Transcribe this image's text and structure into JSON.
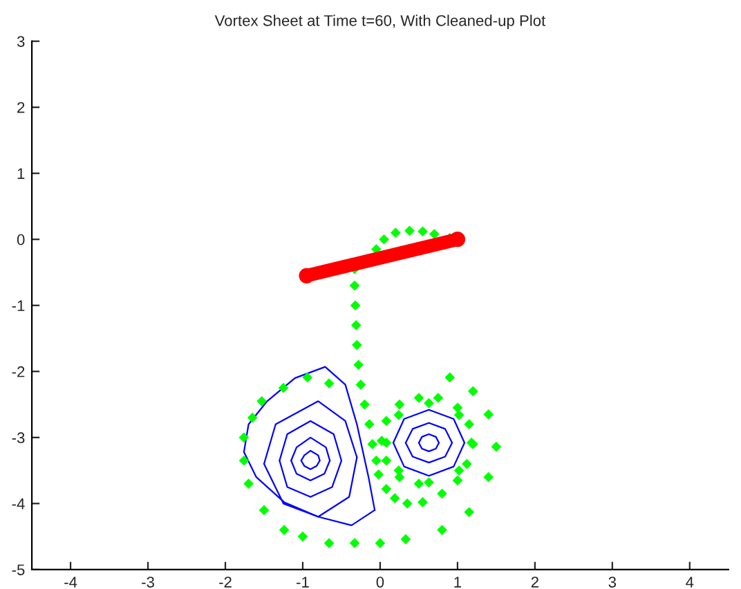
{
  "chart_data": {
    "type": "scatter",
    "title": "Vortex Sheet at Time t=60, With Cleaned-up Plot",
    "xlim": [
      -4.5,
      4.5
    ],
    "ylim": [
      -5,
      3
    ],
    "xticks": [
      -4,
      -3,
      -2,
      -1,
      0,
      1,
      2,
      3,
      4
    ],
    "yticks": [
      -5,
      -4,
      -3,
      -2,
      -1,
      0,
      1,
      2,
      3
    ],
    "grid": false,
    "series": [
      {
        "type": "line",
        "color": "#0000ff",
        "x": [
          -1.76,
          -1.7,
          -1.46,
          -1.1,
          -0.71,
          -0.45,
          -0.3,
          -0.15,
          -0.07
        ],
        "values": [
          -3.22,
          -2.8,
          -2.45,
          -2.1,
          -1.93,
          -2.2,
          -2.8,
          -3.6,
          -4.1
        ]
      },
      {
        "type": "line",
        "color": "#0000ff",
        "x": [
          -1.76,
          -1.6,
          -1.24,
          -0.8,
          -0.37,
          -0.07
        ],
        "values": [
          -3.22,
          -3.6,
          -3.98,
          -4.2,
          -4.33,
          -4.1
        ]
      },
      {
        "type": "line",
        "color": "#0000ff",
        "x": [
          -1.5,
          -1.35,
          -0.8,
          -0.45,
          -0.3
        ],
        "values": [
          -3.4,
          -2.8,
          -2.45,
          -2.75,
          -3.3
        ]
      },
      {
        "type": "line",
        "color": "#0000ff",
        "x": [
          -1.5,
          -1.25,
          -0.8,
          -0.4,
          -0.3
        ],
        "values": [
          -3.4,
          -4.0,
          -4.2,
          -3.9,
          -3.3
        ]
      },
      {
        "type": "line",
        "color": "#0000ff",
        "x": [
          -1.3,
          -1.2,
          -0.9,
          -0.6,
          -0.5
        ],
        "values": [
          -3.35,
          -2.95,
          -2.75,
          -2.95,
          -3.35
        ]
      },
      {
        "type": "line",
        "color": "#0000ff",
        "x": [
          -1.3,
          -1.2,
          -0.9,
          -0.62,
          -0.5
        ],
        "values": [
          -3.35,
          -3.75,
          -3.9,
          -3.75,
          -3.35
        ]
      },
      {
        "type": "line",
        "color": "#0000ff",
        "x": [
          -1.15,
          -1.08,
          -0.9,
          -0.7,
          -0.65
        ],
        "values": [
          -3.35,
          -3.15,
          -3.0,
          -3.15,
          -3.35
        ]
      },
      {
        "type": "line",
        "color": "#0000ff",
        "x": [
          -1.15,
          -1.08,
          -0.9,
          -0.72,
          -0.65
        ],
        "values": [
          -3.35,
          -3.55,
          -3.65,
          -3.55,
          -3.35
        ]
      },
      {
        "type": "line",
        "color": "#0000ff",
        "x": [
          -1.02,
          -0.98,
          -0.9,
          -0.8,
          -0.78
        ],
        "values": [
          -3.35,
          -3.27,
          -3.2,
          -3.27,
          -3.35
        ]
      },
      {
        "type": "line",
        "color": "#0000ff",
        "x": [
          -1.02,
          -0.98,
          -0.9,
          -0.82,
          -0.78
        ],
        "values": [
          -3.35,
          -3.43,
          -3.48,
          -3.43,
          -3.35
        ]
      },
      {
        "type": "line",
        "color": "#0000ff",
        "x": [
          0.17,
          0.31,
          0.63,
          0.95,
          1.09
        ],
        "values": [
          -3.08,
          -2.72,
          -2.58,
          -2.72,
          -3.08
        ]
      },
      {
        "type": "line",
        "color": "#0000ff",
        "x": [
          0.17,
          0.31,
          0.63,
          0.95,
          1.09
        ],
        "values": [
          -3.08,
          -3.44,
          -3.58,
          -3.44,
          -3.08
        ]
      },
      {
        "type": "line",
        "color": "#0000ff",
        "x": [
          0.33,
          0.42,
          0.63,
          0.84,
          0.93
        ],
        "values": [
          -3.08,
          -2.87,
          -2.78,
          -2.87,
          -3.08
        ]
      },
      {
        "type": "line",
        "color": "#0000ff",
        "x": [
          0.33,
          0.42,
          0.63,
          0.84,
          0.93
        ],
        "values": [
          -3.08,
          -3.29,
          -3.38,
          -3.29,
          -3.08
        ]
      },
      {
        "type": "line",
        "color": "#0000ff",
        "x": [
          0.5,
          0.54,
          0.63,
          0.72,
          0.76
        ],
        "values": [
          -3.08,
          -2.99,
          -2.95,
          -2.99,
          -3.08
        ]
      },
      {
        "type": "line",
        "color": "#0000ff",
        "x": [
          0.5,
          0.54,
          0.63,
          0.72,
          0.76
        ],
        "values": [
          -3.08,
          -3.17,
          -3.21,
          -3.17,
          -3.08
        ]
      },
      {
        "marker": "diamond",
        "color": "#00ff00",
        "x": [
          -0.05,
          0.05,
          0.2,
          0.38,
          0.55,
          0.7,
          0.9,
          -0.33,
          -0.33,
          -0.32,
          -0.31,
          -0.3,
          -0.28,
          -0.25,
          -0.2,
          -0.14,
          -0.1,
          -0.05,
          -0.02,
          0.08,
          0.19,
          0.35,
          0.55,
          0.8,
          1.0,
          1.12,
          1.2,
          1.15,
          1.0,
          0.75,
          0.5,
          0.25,
          0.08,
          0.02,
          0.08,
          0.25,
          0.5,
          0.63,
          1.02,
          1.18,
          1.02,
          0.63,
          0.24,
          0.08,
          0.24,
          0.9,
          1.2,
          1.4,
          1.5,
          1.4,
          1.15,
          0.8,
          0.33,
          0.0,
          -0.33,
          -0.66,
          -1.0,
          -1.24,
          -1.5,
          -1.7,
          -1.76,
          -1.76,
          -1.65,
          -1.53,
          -1.25,
          -0.94,
          -0.66
        ],
        "values": [
          -0.15,
          0.0,
          0.1,
          0.13,
          0.12,
          0.08,
          0.02,
          -0.45,
          -0.7,
          -1.0,
          -1.3,
          -1.6,
          -1.9,
          -2.2,
          -2.5,
          -2.8,
          -3.1,
          -3.35,
          -3.56,
          -3.78,
          -3.92,
          -4.0,
          -3.98,
          -3.85,
          -3.65,
          -3.4,
          -3.1,
          -2.8,
          -2.55,
          -2.4,
          -2.4,
          -2.5,
          -2.75,
          -3.05,
          -3.35,
          -3.6,
          -3.7,
          -2.48,
          -2.66,
          -3.08,
          -3.5,
          -3.68,
          -3.5,
          -3.08,
          -2.66,
          -2.09,
          -2.3,
          -2.65,
          -3.14,
          -3.6,
          -4.13,
          -4.4,
          -4.54,
          -4.6,
          -4.6,
          -4.6,
          -4.5,
          -4.4,
          -4.1,
          -3.7,
          -3.35,
          -3.0,
          -2.7,
          -2.45,
          -2.25,
          -2.09,
          -2.18
        ]
      },
      {
        "type": "line",
        "color": "#ff0000",
        "marker": "circle",
        "x": [
          -0.95,
          1.0
        ],
        "values": [
          -0.55,
          0.0
        ]
      }
    ]
  }
}
